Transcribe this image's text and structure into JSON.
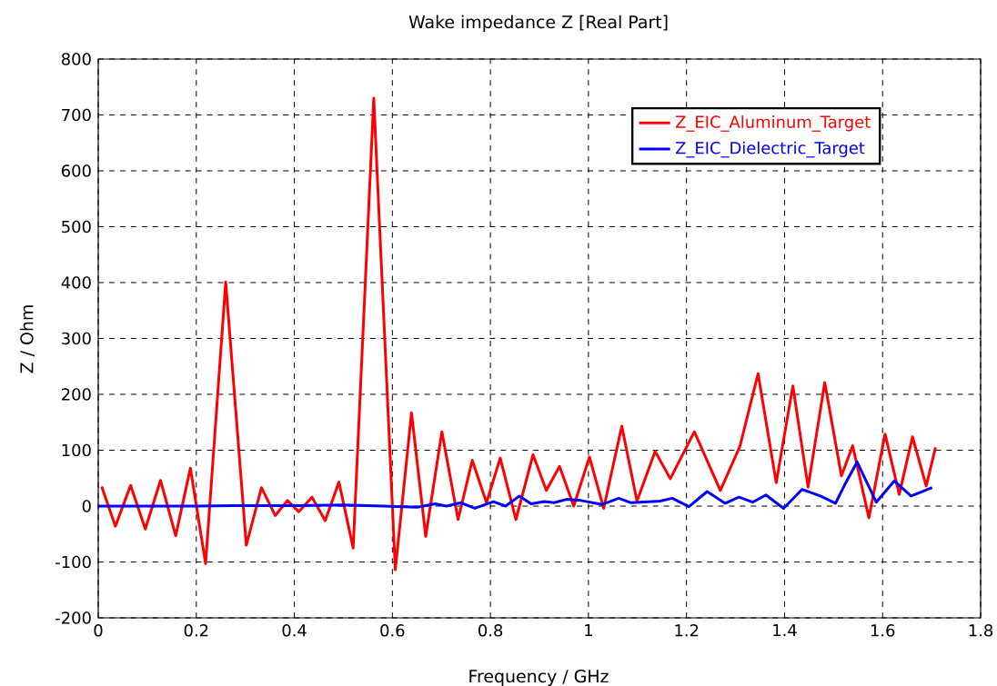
{
  "chart_data": {
    "type": "line",
    "title": "Wake impedance Z [Real Part]",
    "xlabel": "Frequency / GHz",
    "ylabel": "Z / Ohm",
    "xlim": [
      0,
      1.8
    ],
    "ylim": [
      -200,
      800
    ],
    "xticks": [
      0,
      0.2,
      0.4,
      0.6,
      0.8,
      1,
      1.2,
      1.4,
      1.6,
      1.8
    ],
    "yticks": [
      -200,
      -100,
      0,
      100,
      200,
      300,
      400,
      500,
      600,
      700,
      800
    ],
    "grid": true,
    "legend": "top right",
    "marker": "none",
    "line_style": "solid",
    "series": [
      {
        "name": "Z_EIC_Aluminum_Target",
        "color": "#ff0000",
        "x": [
          0.007,
          0.035,
          0.066,
          0.096,
          0.127,
          0.158,
          0.188,
          0.219,
          0.26,
          0.302,
          0.333,
          0.361,
          0.386,
          0.409,
          0.436,
          0.463,
          0.491,
          0.52,
          0.562,
          0.606,
          0.639,
          0.668,
          0.701,
          0.734,
          0.763,
          0.792,
          0.82,
          0.852,
          0.887,
          0.914,
          0.941,
          0.97,
          1.002,
          1.031,
          1.068,
          1.099,
          1.136,
          1.167,
          1.216,
          1.269,
          1.309,
          1.346,
          1.383,
          1.417,
          1.448,
          1.482,
          1.516,
          1.539,
          1.572,
          1.605,
          1.634,
          1.661,
          1.689,
          1.708
        ],
        "values": [
          35,
          -36,
          37,
          -41,
          46,
          -53,
          68,
          -103,
          401,
          -70,
          33,
          -17,
          10,
          -10,
          16,
          -26,
          43,
          -75,
          730,
          -114,
          167,
          -54,
          133,
          -24,
          82,
          6,
          86,
          -24,
          92,
          28,
          71,
          0,
          88,
          -4,
          143,
          9,
          98,
          49,
          133,
          28,
          107,
          237,
          42,
          215,
          34,
          221,
          54,
          108,
          -21,
          129,
          21,
          124,
          36,
          105
        ]
      },
      {
        "name": "Z_EIC_Dielectric_Target",
        "color": "#0000ff",
        "x": [
          0.0,
          0.2,
          0.3,
          0.4,
          0.5,
          0.582,
          0.651,
          0.687,
          0.71,
          0.74,
          0.768,
          0.806,
          0.831,
          0.859,
          0.883,
          0.91,
          0.93,
          0.955,
          0.985,
          1.028,
          1.062,
          1.087,
          1.146,
          1.171,
          1.205,
          1.242,
          1.279,
          1.307,
          1.335,
          1.362,
          1.398,
          1.436,
          1.473,
          1.504,
          1.525,
          1.548,
          1.587,
          1.624,
          1.658,
          1.701
        ],
        "values": [
          0,
          0,
          1,
          1,
          2,
          0,
          -2,
          4,
          0,
          6,
          -4,
          8,
          0,
          18,
          4,
          8,
          6,
          12,
          10,
          3,
          14,
          6,
          9,
          14,
          -1,
          26,
          5,
          16,
          7,
          20,
          -4,
          30,
          18,
          5,
          42,
          79,
          7,
          45,
          18,
          33
        ]
      }
    ]
  }
}
